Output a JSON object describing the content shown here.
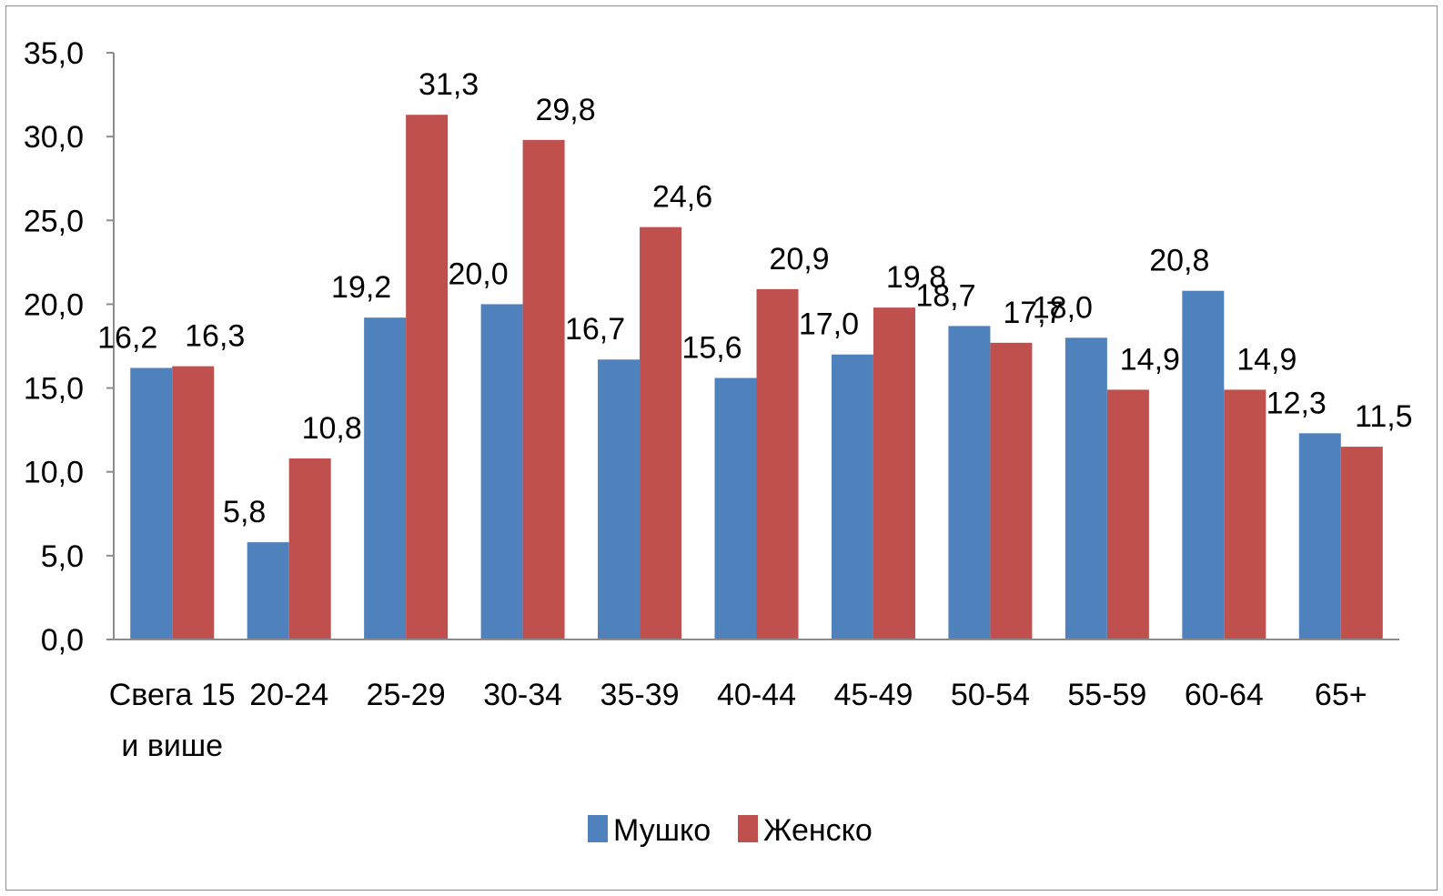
{
  "chart_data": {
    "type": "bar",
    "categories": [
      [
        "Свега 15",
        "и више"
      ],
      [
        "20-24"
      ],
      [
        "25-29"
      ],
      [
        "30-34"
      ],
      [
        "35-39"
      ],
      [
        "40-44"
      ],
      [
        "45-49"
      ],
      [
        "50-54"
      ],
      [
        "55-59"
      ],
      [
        "60-64"
      ],
      [
        "65+"
      ]
    ],
    "series": [
      {
        "name": "Мушко",
        "color": "#4f81bd",
        "values": [
          16.2,
          5.8,
          19.2,
          20.0,
          16.7,
          15.6,
          17.0,
          18.7,
          18.0,
          20.8,
          12.3
        ],
        "labels": [
          "16,2",
          "5,8",
          "19,2",
          "20,0",
          "16,7",
          "15,6",
          "17,0",
          "18,7",
          "18,0",
          "20,8",
          "12,3"
        ]
      },
      {
        "name": "Женско",
        "color": "#c0504d",
        "values": [
          16.3,
          10.8,
          31.3,
          29.8,
          24.6,
          20.9,
          19.8,
          17.7,
          14.9,
          14.9,
          11.5
        ],
        "labels": [
          "16,3",
          "10,8",
          "31,3",
          "29,8",
          "24,6",
          "20,9",
          "19,8",
          "17,7",
          "14,9",
          "14,9",
          "11,5"
        ]
      }
    ],
    "y_ticks": [
      "0,0",
      "5,0",
      "10,0",
      "15,0",
      "20,0",
      "25,0",
      "30,0",
      "35,0"
    ],
    "ylim": [
      0,
      35
    ],
    "grid": false,
    "legend_position": "bottom",
    "title": "",
    "xlabel": "",
    "ylabel": ""
  }
}
